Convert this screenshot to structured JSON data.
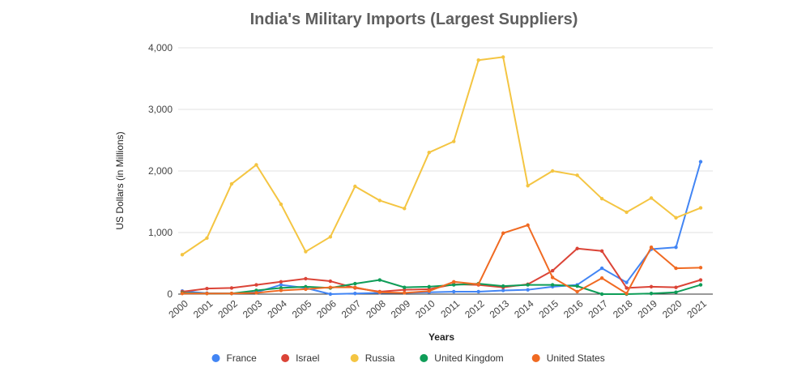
{
  "chart_data": {
    "type": "line",
    "title": "India's Military Imports (Largest Suppliers)",
    "xlabel": "Years",
    "ylabel": "US Dollars (in Millions)",
    "ylim": [
      0,
      4000
    ],
    "yticks": [
      0,
      1000,
      2000,
      3000,
      4000
    ],
    "ytick_labels": [
      "0",
      "1,000",
      "2,000",
      "3,000",
      "4,000"
    ],
    "grid": true,
    "legend_position": "bottom",
    "categories": [
      "2000",
      "2001",
      "2002",
      "2003",
      "2004",
      "2005",
      "2006",
      "2007",
      "2008",
      "2009",
      "2010",
      "2011",
      "2012",
      "2013",
      "2014",
      "2015",
      "2016",
      "2017",
      "2018",
      "2019",
      "2020",
      "2021"
    ],
    "series": [
      {
        "name": "France",
        "color": "#4285f4",
        "values": [
          50,
          15,
          10,
          30,
          150,
          100,
          0,
          10,
          20,
          20,
          30,
          40,
          40,
          60,
          70,
          120,
          150,
          420,
          190,
          730,
          760,
          2150
        ]
      },
      {
        "name": "Israel",
        "color": "#db4437",
        "values": [
          40,
          90,
          100,
          150,
          200,
          250,
          210,
          100,
          40,
          70,
          80,
          160,
          150,
          110,
          160,
          380,
          740,
          700,
          100,
          120,
          110,
          230
        ]
      },
      {
        "name": "Russia",
        "color": "#f4c542",
        "values": [
          640,
          910,
          1790,
          2100,
          1460,
          690,
          930,
          1750,
          1520,
          1390,
          2300,
          2480,
          3800,
          3850,
          1760,
          2000,
          1930,
          1550,
          1330,
          1560,
          1240,
          1400
        ]
      },
      {
        "name": "United Kingdom",
        "color": "#0f9d58",
        "values": [
          20,
          10,
          10,
          60,
          100,
          120,
          100,
          170,
          230,
          110,
          120,
          150,
          170,
          130,
          150,
          150,
          130,
          0,
          0,
          10,
          30,
          150
        ]
      },
      {
        "name": "United States",
        "color": "#f06a22",
        "values": [
          10,
          10,
          10,
          20,
          60,
          80,
          110,
          110,
          30,
          20,
          50,
          200,
          160,
          990,
          1120,
          270,
          40,
          260,
          10,
          760,
          420,
          430
        ]
      }
    ]
  }
}
